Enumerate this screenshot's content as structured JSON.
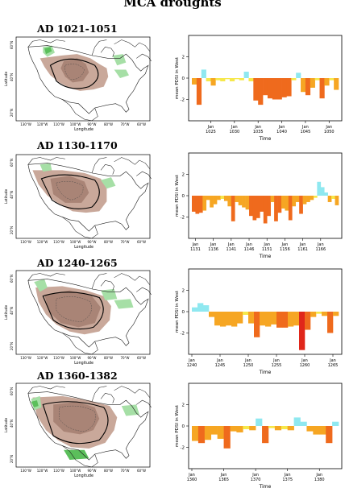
{
  "title": "MCA droughts",
  "map_axis": {
    "xlabel": "Longitude",
    "xticks": [
      "130°W",
      "120°W",
      "110°W",
      "100°W",
      "90°W",
      "80°W",
      "70°W",
      "60°W"
    ],
    "yticks": [
      "60°N",
      "40°N",
      "20°N"
    ],
    "ylabel": "Latitude"
  },
  "colors": {
    "dry_fill": "#c9a89a",
    "dry_dark": "#a98476",
    "wet_fill": "#a6dfa6",
    "wet_dark": "#5bbf5b",
    "bar_orange": "#ef6a1d",
    "bar_light_orange": "#f6a623",
    "bar_yellow": "#f6e84a",
    "bar_cyan": "#8fe8f0",
    "bar_red": "#e0261a"
  },
  "chart_data": [
    {
      "type": "bar",
      "period": "AD 1021-1051",
      "ylabel": "mean PDSI in West",
      "xlabel": "Time",
      "ylim": [
        -4,
        4
      ],
      "yticks": [
        "2",
        "0",
        "-2"
      ],
      "start_year": 1021,
      "xticks": [
        {
          "year": 1025,
          "label": [
            "Jan",
            "1025"
          ]
        },
        {
          "year": 1030,
          "label": [
            "Jan",
            "1030"
          ]
        },
        {
          "year": 1035,
          "label": [
            "Jan",
            "1035"
          ]
        },
        {
          "year": 1040,
          "label": [
            "Jan",
            "1040"
          ]
        },
        {
          "year": 1045,
          "label": [
            "Jan",
            "1045"
          ]
        },
        {
          "year": 1050,
          "label": [
            "Jan",
            "1050"
          ]
        }
      ],
      "values": [
        -0.6,
        -2.5,
        0.8,
        -0.3,
        -0.7,
        -0.2,
        -0.3,
        -0.1,
        -0.3,
        -0.1,
        -0.2,
        0.6,
        -0.3,
        -2.1,
        -2.5,
        -1.6,
        -1.9,
        -2.0,
        -2.0,
        -1.8,
        -1.7,
        -0.2,
        0.5,
        -1.3,
        -1.6,
        -0.9,
        -0.2,
        -1.9,
        -0.7,
        -0.2,
        -1.1
      ]
    },
    {
      "type": "bar",
      "period": "AD 1130-1170",
      "ylabel": "mean PDSI in West",
      "xlabel": "Time",
      "ylim": [
        -4,
        4
      ],
      "yticks": [
        "2",
        "0",
        "-2"
      ],
      "start_year": 1130,
      "xticks": [
        {
          "year": 1131,
          "label": [
            "Jan",
            "1131"
          ]
        },
        {
          "year": 1136,
          "label": [
            "Jan",
            "1136"
          ]
        },
        {
          "year": 1141,
          "label": [
            "Jan",
            "1141"
          ]
        },
        {
          "year": 1146,
          "label": [
            "Jan",
            "1146"
          ]
        },
        {
          "year": 1151,
          "label": [
            "Jan",
            "1151"
          ]
        },
        {
          "year": 1156,
          "label": [
            "Jan",
            "1156"
          ]
        },
        {
          "year": 1161,
          "label": [
            "Jan",
            "1161"
          ]
        },
        {
          "year": 1166,
          "label": [
            "Jan",
            "1166"
          ]
        }
      ],
      "values": [
        -1.5,
        -1.7,
        -1.6,
        -1.4,
        -0.4,
        -1.1,
        -0.8,
        -0.4,
        -0.3,
        -0.5,
        -1.0,
        -2.4,
        -0.6,
        -0.9,
        -1.1,
        -1.3,
        -1.9,
        -2.3,
        -2.1,
        -1.5,
        -2.6,
        -1.9,
        -0.6,
        -2.4,
        -1.6,
        -1.2,
        -1.4,
        -2.3,
        -1.0,
        -0.6,
        -1.7,
        -0.8,
        -0.6,
        -0.4,
        -0.2,
        1.3,
        0.8,
        0.3,
        -0.6,
        -0.3,
        -0.9
      ]
    },
    {
      "type": "bar",
      "period": "AD 1240-1265",
      "ylabel": "mean PDSI in West",
      "xlabel": "Time",
      "ylim": [
        -4,
        4
      ],
      "yticks": [
        "2",
        "0",
        "-2"
      ],
      "start_year": 1240,
      "xticks": [
        {
          "year": 1240,
          "label": [
            "Jan",
            "1240"
          ]
        },
        {
          "year": 1245,
          "label": [
            "Jan",
            "1245"
          ]
        },
        {
          "year": 1250,
          "label": [
            "Jan",
            "1250"
          ]
        },
        {
          "year": 1255,
          "label": [
            "Jan",
            "1255"
          ]
        },
        {
          "year": 1260,
          "label": [
            "Jan",
            "1260"
          ]
        },
        {
          "year": 1265,
          "label": [
            "Jan",
            "1265"
          ]
        }
      ],
      "values": [
        0.4,
        0.8,
        0.6,
        -0.5,
        -1.3,
        -1.4,
        -1.3,
        -1.4,
        -1.1,
        -0.3,
        -1.1,
        -2.4,
        -1.3,
        -1.4,
        -1.2,
        -1.5,
        -1.5,
        -1.4,
        -1.3,
        -3.6,
        -1.7,
        -0.5,
        -0.2,
        -0.4,
        -2.0,
        -0.4
      ]
    },
    {
      "type": "bar",
      "period": "AD 1360-1382",
      "ylabel": "mean PDSI in West",
      "xlabel": "Time",
      "ylim": [
        -4,
        4
      ],
      "yticks": [
        "2",
        "0",
        "-2"
      ],
      "start_year": 1360,
      "xticks": [
        {
          "year": 1360,
          "label": [
            "Jan",
            "1360"
          ]
        },
        {
          "year": 1365,
          "label": [
            "Jan",
            "1365"
          ]
        },
        {
          "year": 1370,
          "label": [
            "Jan",
            "1370"
          ]
        },
        {
          "year": 1375,
          "label": [
            "Jan",
            "1375"
          ]
        },
        {
          "year": 1380,
          "label": [
            "Jan",
            "1380"
          ]
        }
      ],
      "values": [
        -1.4,
        -1.6,
        -1.3,
        -0.8,
        -1.2,
        -2.1,
        -0.5,
        -0.6,
        -0.3,
        -0.4,
        0.7,
        -1.6,
        -0.2,
        -0.4,
        -0.3,
        -0.4,
        0.8,
        0.4,
        -0.5,
        -0.8,
        -0.8,
        -1.6,
        0.4
      ]
    }
  ]
}
